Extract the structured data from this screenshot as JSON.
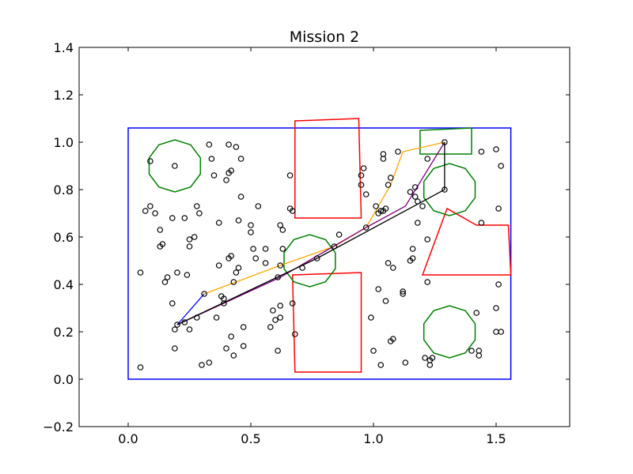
{
  "chart_data": {
    "type": "scatter",
    "title": "Mission 2",
    "xlabel": "",
    "ylabel": "",
    "xlim": [
      -0.2,
      1.8
    ],
    "ylim": [
      -0.2,
      1.4
    ],
    "xticks": [
      0.0,
      0.5,
      1.0,
      1.5
    ],
    "xtick_labels": [
      "0.0",
      "0.5",
      "1.0",
      "1.5"
    ],
    "yticks": [
      -0.2,
      0.0,
      0.2,
      0.4,
      0.6,
      0.8,
      1.0,
      1.2,
      1.4
    ],
    "ytick_labels": [
      "−0.2",
      "0.0",
      "0.2",
      "0.4",
      "0.6",
      "0.8",
      "1.0",
      "1.2",
      "1.4"
    ],
    "grid": false,
    "boundary": {
      "color": "#0000ff",
      "points": [
        [
          0,
          0
        ],
        [
          1.56,
          0
        ],
        [
          1.56,
          1.06
        ],
        [
          0,
          1.06
        ]
      ]
    },
    "red_obstacles": [
      [
        [
          0.68,
          1.09
        ],
        [
          0.94,
          1.1
        ],
        [
          0.95,
          0.68
        ],
        [
          0.68,
          0.68
        ]
      ],
      [
        [
          0.67,
          0.44
        ],
        [
          0.95,
          0.45
        ],
        [
          0.95,
          0.03
        ],
        [
          0.68,
          0.03
        ]
      ],
      [
        [
          1.3,
          0.72
        ],
        [
          1.2,
          0.44
        ],
        [
          1.56,
          0.44
        ],
        [
          1.55,
          0.65
        ],
        [
          1.42,
          0.65
        ]
      ]
    ],
    "green_obstacles": [
      {
        "center": [
          0.19,
          0.9
        ],
        "radius": 0.11
      },
      {
        "center": [
          0.74,
          0.5
        ],
        "radius": 0.11
      },
      {
        "center": [
          1.31,
          0.8
        ],
        "radius": 0.11
      },
      {
        "center": [
          1.31,
          0.2
        ],
        "radius": 0.11
      }
    ],
    "green_rect": [
      [
        1.19,
        1.05
      ],
      [
        1.4,
        1.06
      ],
      [
        1.4,
        0.95
      ],
      [
        1.19,
        0.95
      ]
    ],
    "series": [
      {
        "color": "#0000ff",
        "points": [
          [
            0.2,
            0.23
          ],
          [
            0.31,
            0.36
          ]
        ]
      },
      {
        "color": "#ffa500",
        "points": [
          [
            0.31,
            0.36
          ],
          [
            0.62,
            0.48
          ],
          [
            0.84,
            0.56
          ],
          [
            0.97,
            0.64
          ],
          [
            1.07,
            0.82
          ],
          [
            1.12,
            0.96
          ],
          [
            1.29,
            1.0
          ]
        ]
      },
      {
        "color": "#800080",
        "points": [
          [
            0.2,
            0.23
          ],
          [
            0.62,
            0.43
          ],
          [
            0.97,
            0.64
          ],
          [
            1.13,
            0.73
          ],
          [
            1.29,
            1.0
          ]
        ]
      },
      {
        "color": "#000000",
        "points": [
          [
            0.2,
            0.23
          ],
          [
            0.77,
            0.51
          ],
          [
            1.29,
            0.8
          ],
          [
            1.29,
            1.0
          ]
        ]
      }
    ],
    "nodes": [
      [
        0.05,
        0.05
      ],
      [
        0.05,
        0.45
      ],
      [
        0.07,
        0.71
      ],
      [
        0.09,
        0.73
      ],
      [
        0.09,
        0.92
      ],
      [
        0.11,
        0.7
      ],
      [
        0.13,
        0.56
      ],
      [
        0.13,
        0.63
      ],
      [
        0.14,
        0.57
      ],
      [
        0.15,
        0.41
      ],
      [
        0.16,
        0.43
      ],
      [
        0.18,
        0.32
      ],
      [
        0.18,
        0.68
      ],
      [
        0.19,
        0.13
      ],
      [
        0.19,
        0.21
      ],
      [
        0.19,
        0.9
      ],
      [
        0.2,
        0.23
      ],
      [
        0.2,
        0.45
      ],
      [
        0.23,
        0.24
      ],
      [
        0.23,
        0.68
      ],
      [
        0.24,
        0.44
      ],
      [
        0.25,
        0.21
      ],
      [
        0.25,
        0.59
      ],
      [
        0.25,
        0.56
      ],
      [
        0.27,
        0.6
      ],
      [
        0.28,
        0.26
      ],
      [
        0.28,
        0.73
      ],
      [
        0.29,
        0.7
      ],
      [
        0.3,
        0.06
      ],
      [
        0.31,
        0.36
      ],
      [
        0.33,
        0.07
      ],
      [
        0.33,
        0.99
      ],
      [
        0.34,
        0.93
      ],
      [
        0.35,
        0.86
      ],
      [
        0.36,
        0.26
      ],
      [
        0.37,
        0.48
      ],
      [
        0.37,
        0.66
      ],
      [
        0.38,
        0.35
      ],
      [
        0.39,
        0.34
      ],
      [
        0.39,
        0.32
      ],
      [
        0.4,
        0.13
      ],
      [
        0.4,
        0.84
      ],
      [
        0.41,
        0.51
      ],
      [
        0.41,
        0.87
      ],
      [
        0.41,
        0.99
      ],
      [
        0.42,
        0.52
      ],
      [
        0.42,
        0.18
      ],
      [
        0.42,
        0.88
      ],
      [
        0.43,
        0.41
      ],
      [
        0.43,
        0.1
      ],
      [
        0.44,
        0.98
      ],
      [
        0.44,
        0.45
      ],
      [
        0.45,
        0.47
      ],
      [
        0.45,
        0.67
      ],
      [
        0.46,
        0.93
      ],
      [
        0.46,
        0.77
      ],
      [
        0.47,
        0.14
      ],
      [
        0.47,
        0.22
      ],
      [
        0.5,
        0.65
      ],
      [
        0.5,
        0.62
      ],
      [
        0.51,
        0.55
      ],
      [
        0.52,
        0.51
      ],
      [
        0.53,
        0.73
      ],
      [
        0.56,
        0.55
      ],
      [
        0.56,
        0.49
      ],
      [
        0.58,
        0.22
      ],
      [
        0.59,
        0.29
      ],
      [
        0.6,
        0.25
      ],
      [
        0.61,
        0.43
      ],
      [
        0.61,
        0.12
      ],
      [
        0.62,
        0.26
      ],
      [
        0.62,
        0.31
      ],
      [
        0.62,
        0.65
      ],
      [
        0.62,
        0.48
      ],
      [
        0.63,
        0.63
      ],
      [
        0.63,
        0.55
      ],
      [
        0.66,
        0.86
      ],
      [
        0.66,
        0.72
      ],
      [
        0.67,
        0.71
      ],
      [
        0.67,
        0.32
      ],
      [
        0.68,
        0.19
      ],
      [
        0.71,
        0.47
      ],
      [
        0.77,
        0.51
      ],
      [
        0.84,
        0.56
      ],
      [
        0.86,
        0.61
      ],
      [
        0.95,
        0.82
      ],
      [
        0.95,
        0.86
      ],
      [
        0.96,
        0.89
      ],
      [
        0.97,
        0.78
      ],
      [
        0.97,
        0.64
      ],
      [
        0.99,
        0.26
      ],
      [
        1.0,
        0.12
      ],
      [
        1.01,
        0.73
      ],
      [
        1.02,
        0.7
      ],
      [
        1.02,
        0.38
      ],
      [
        1.03,
        0.06
      ],
      [
        1.03,
        0.71
      ],
      [
        1.04,
        0.93
      ],
      [
        1.04,
        0.95
      ],
      [
        1.04,
        0.71
      ],
      [
        1.05,
        0.72
      ],
      [
        1.05,
        0.33
      ],
      [
        1.06,
        0.49
      ],
      [
        1.06,
        0.82
      ],
      [
        1.07,
        0.16
      ],
      [
        1.07,
        0.85
      ],
      [
        1.08,
        0.47
      ],
      [
        1.08,
        0.17
      ],
      [
        1.1,
        0.96
      ],
      [
        1.12,
        0.36
      ],
      [
        1.12,
        0.37
      ],
      [
        1.13,
        0.07
      ],
      [
        1.15,
        0.5
      ],
      [
        1.15,
        0.79
      ],
      [
        1.16,
        0.55
      ],
      [
        1.16,
        0.51
      ],
      [
        1.17,
        0.77
      ],
      [
        1.17,
        0.81
      ],
      [
        1.18,
        0.75
      ],
      [
        1.18,
        0.66
      ],
      [
        1.2,
        0.73
      ],
      [
        1.21,
        0.09
      ],
      [
        1.22,
        0.93
      ],
      [
        1.22,
        0.41
      ],
      [
        1.22,
        0.59
      ],
      [
        1.23,
        0.08
      ],
      [
        1.23,
        0.06
      ],
      [
        1.24,
        0.09
      ],
      [
        1.29,
        1.0
      ],
      [
        1.29,
        0.8
      ],
      [
        1.4,
        0.12
      ],
      [
        1.42,
        0.28
      ],
      [
        1.43,
        0.12
      ],
      [
        1.43,
        0.1
      ],
      [
        1.44,
        0.96
      ],
      [
        1.44,
        0.66
      ],
      [
        1.5,
        0.97
      ],
      [
        1.5,
        0.3
      ],
      [
        1.5,
        0.2
      ],
      [
        1.51,
        0.72
      ],
      [
        1.51,
        0.4
      ],
      [
        1.52,
        0.2
      ],
      [
        1.52,
        0.9
      ]
    ]
  }
}
